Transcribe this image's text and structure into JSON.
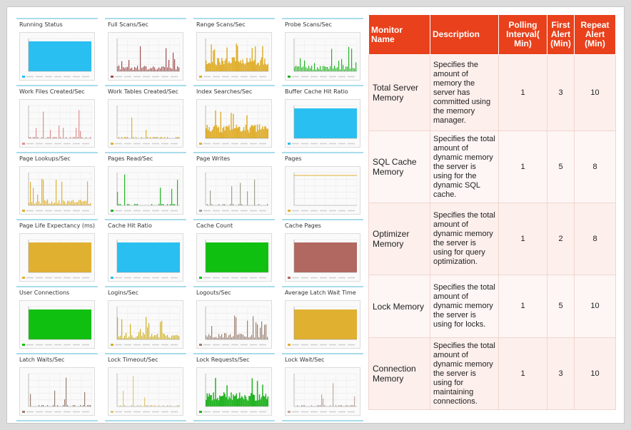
{
  "graphs": [
    {
      "title": "Running Status",
      "kind": "fill",
      "color": "#29bff0"
    },
    {
      "title": "Full Scans/Sec",
      "kind": "spikes",
      "color": "#a05050"
    },
    {
      "title": "Range Scans/Sec",
      "kind": "dense",
      "color": "#e0b030"
    },
    {
      "title": "Probe Scans/Sec",
      "kind": "spikes",
      "color": "#22b422"
    },
    {
      "title": "Work Files Created/Sec",
      "kind": "sparse",
      "color": "#e09090"
    },
    {
      "title": "Work Tables Created/Sec",
      "kind": "sparse",
      "color": "#e0b030"
    },
    {
      "title": "Index Searches/Sec",
      "kind": "dense",
      "color": "#e0b030"
    },
    {
      "title": "Buffer Cache Hit Ratio",
      "kind": "fill",
      "color": "#29bff0"
    },
    {
      "title": "Page Lookups/Sec",
      "kind": "spikes",
      "color": "#e0b030"
    },
    {
      "title": "Pages Read/Sec",
      "kind": "sparse",
      "color": "#22b422"
    },
    {
      "title": "Page Writes",
      "kind": "sparse",
      "color": "#a0a090"
    },
    {
      "title": "Pages",
      "kind": "flat",
      "color": "#e0b030"
    },
    {
      "title": "Page Life Expectancy (ms)",
      "kind": "fill",
      "color": "#e0b030"
    },
    {
      "title": "Cache Hit Ratio",
      "kind": "fill",
      "color": "#29bff0"
    },
    {
      "title": "Cache Count",
      "kind": "fill",
      "color": "#10c010"
    },
    {
      "title": "Cache Pages",
      "kind": "fill",
      "color": "#b06860"
    },
    {
      "title": "User Connections",
      "kind": "fill",
      "color": "#10c010"
    },
    {
      "title": "Logins/Sec",
      "kind": "spikes",
      "color": "#d0b020"
    },
    {
      "title": "Logouts/Sec",
      "kind": "spikes",
      "color": "#9a8070"
    },
    {
      "title": "Average Latch Wait Time",
      "kind": "fill",
      "color": "#e0b030"
    },
    {
      "title": "Latch Waits/Sec",
      "kind": "sparse",
      "color": "#9a8070"
    },
    {
      "title": "Lock Timeout/Sec",
      "kind": "sparse",
      "color": "#e0c880"
    },
    {
      "title": "Lock Requests/Sec",
      "kind": "dense",
      "color": "#22b422"
    },
    {
      "title": "Lock Wait/Sec",
      "kind": "sparse",
      "color": "#c0a8a0"
    }
  ],
  "table": {
    "headers": {
      "name": "Monitor Name",
      "desc": "Description",
      "poll": "Polling Interval( Min)",
      "first": "First Alert (Min)",
      "repeat": "Repeat Alert (Min)"
    },
    "rows": [
      {
        "name": "Total Server Memory",
        "desc": "Specifies the amount of memory the server has committed using the memory manager.",
        "poll": "1",
        "first": "3",
        "repeat": "10"
      },
      {
        "name": "SQL Cache Memory",
        "desc": "Specifies the total amount of dynamic memory the server is using for the dynamic SQL cache.",
        "poll": "1",
        "first": "5",
        "repeat": "8"
      },
      {
        "name": "Optimizer Memory",
        "desc": "Specifies the total amount of dynamic memory the server is using for query optimization.",
        "poll": "1",
        "first": "2",
        "repeat": "8"
      },
      {
        "name": "Lock Memory",
        "desc": "Specifies the total amount of dynamic memory the server is using for locks.",
        "poll": "1",
        "first": "5",
        "repeat": "10"
      },
      {
        "name": "Connection Memory",
        "desc": "Specifies the total amount of dynamic memory the server is using for maintaining connections.",
        "poll": "1",
        "first": "3",
        "repeat": "10"
      }
    ]
  }
}
